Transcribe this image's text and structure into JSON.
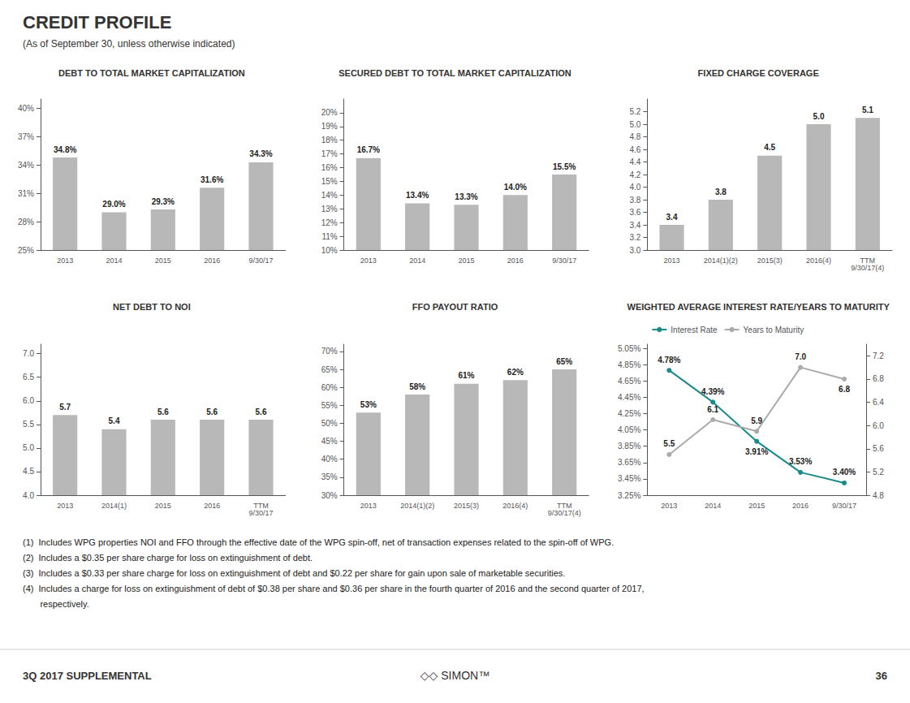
{
  "title": "CREDIT PROFILE",
  "subtitle": "(As of September 30, unless otherwise indicated)",
  "footnotes": [
    "(1)  Includes WPG properties NOI and FFO through the effective date of the WPG spin-off, net of transaction expenses related to the spin-off of WPG.",
    "(2)  Includes a $0.35 per share charge for loss on extinguishment of debt.",
    "(3)  Includes a $0.33 per share charge for loss on extinguishment of debt and $0.22 per share for gain upon sale of marketable securities.",
    "(4)  Includes a charge for loss on extinguishment of debt of $0.38 per share and $0.36 per share in the fourth quarter of 2016 and the second quarter of 2017,",
    "       respectively."
  ],
  "annotations": [
    "3Q 2017 SUPPLEMENTAL",
    "◇◇ SIMON™",
    "36"
  ],
  "chart_data": [
    {
      "type": "bar",
      "title": "DEBT TO TOTAL MARKET CAPITALIZATION",
      "categories": [
        "2013",
        "2014",
        "2015",
        "2016",
        "9/30/17"
      ],
      "values": [
        34.8,
        29.0,
        29.3,
        31.6,
        34.3
      ],
      "value_labels": [
        "34.8%",
        "29.0%",
        "29.3%",
        "31.6%",
        "34.3%"
      ],
      "color": "#b8b8b8",
      "ylim": [
        25,
        41
      ],
      "yticks": [
        {
          "value": 25,
          "label": "25%"
        },
        {
          "value": 28,
          "label": "28%"
        },
        {
          "value": 31,
          "label": "31%"
        },
        {
          "value": 34,
          "label": "34%"
        },
        {
          "value": 37,
          "label": "37%"
        },
        {
          "value": 40,
          "label": "40%"
        }
      ],
      "grid": false,
      "data_labels": true
    },
    {
      "type": "bar",
      "title": "SECURED DEBT TO TOTAL MARKET CAPITALIZATION",
      "categories": [
        "2013",
        "2014",
        "2015",
        "2016",
        "9/30/17"
      ],
      "values": [
        16.7,
        13.4,
        13.3,
        14.0,
        15.5
      ],
      "value_labels": [
        "16.7%",
        "13.4%",
        "13.3%",
        "14.0%",
        "15.5%"
      ],
      "color": "#b8b8b8",
      "ylim": [
        10,
        21
      ],
      "yticks": [
        {
          "value": 10,
          "label": "10%"
        },
        {
          "value": 11,
          "label": "11%"
        },
        {
          "value": 12,
          "label": "12%"
        },
        {
          "value": 13,
          "label": "13%"
        },
        {
          "value": 14,
          "label": "14%"
        },
        {
          "value": 15,
          "label": "15%"
        },
        {
          "value": 16,
          "label": "16%"
        },
        {
          "value": 17,
          "label": "17%"
        },
        {
          "value": 18,
          "label": "18%"
        },
        {
          "value": 19,
          "label": "19%"
        },
        {
          "value": 20,
          "label": "20%"
        }
      ],
      "grid": false,
      "data_labels": true
    },
    {
      "type": "bar",
      "title": "FIXED CHARGE COVERAGE",
      "categories": [
        "2013",
        "2014(1)(2)",
        "2015(3)",
        "2016(4)",
        "TTM\n9/30/17(4)"
      ],
      "values": [
        3.4,
        3.8,
        4.5,
        5.0,
        5.1
      ],
      "value_labels": [
        "3.4",
        "3.8",
        "4.5",
        "5.0",
        "5.1"
      ],
      "color": "#b8b8b8",
      "ylim": [
        3.0,
        5.4
      ],
      "yticks": [
        {
          "value": 3.0,
          "label": "3.0"
        },
        3.2,
        3.4,
        3.6,
        3.8,
        {
          "value": 4.0,
          "label": "4.0"
        },
        4.2,
        4.4,
        4.6,
        4.8,
        {
          "value": 5.0,
          "label": "5.0"
        },
        5.2
      ],
      "grid": false,
      "data_labels": true
    },
    {
      "type": "bar",
      "title": "NET DEBT TO NOI",
      "categories": [
        "2013",
        "2014(1)",
        "2015",
        "2016",
        "TTM\n9/30/17"
      ],
      "values": [
        5.7,
        5.4,
        5.6,
        5.6,
        5.6
      ],
      "value_labels": [
        "5.7",
        "5.4",
        "5.6",
        "5.6",
        "5.6"
      ],
      "color": "#b8b8b8",
      "ylim": [
        4.0,
        7.2
      ],
      "yticks": [
        {
          "value": 4.0,
          "label": "4.0"
        },
        4.5,
        {
          "value": 5.0,
          "label": "5.0"
        },
        5.5,
        {
          "value": 6.0,
          "label": "6.0"
        },
        6.5,
        {
          "value": 7.0,
          "label": "7.0"
        }
      ],
      "grid": false,
      "data_labels": true
    },
    {
      "type": "bar",
      "title": "FFO PAYOUT RATIO",
      "categories": [
        "2013",
        "2014(1)(2)",
        "2015(3)",
        "2016(4)",
        "TTM\n9/30/17(4)"
      ],
      "values": [
        53,
        58,
        61,
        62,
        65
      ],
      "value_labels": [
        "53%",
        "58%",
        "61%",
        "62%",
        "65%"
      ],
      "color": "#b8b8b8",
      "ylim": [
        30,
        72
      ],
      "yticks": [
        {
          "value": 30,
          "label": "30%"
        },
        {
          "value": 35,
          "label": "35%"
        },
        {
          "value": 40,
          "label": "40%"
        },
        {
          "value": 45,
          "label": "45%"
        },
        {
          "value": 50,
          "label": "50%"
        },
        {
          "value": 55,
          "label": "55%"
        },
        {
          "value": 60,
          "label": "60%"
        },
        {
          "value": 65,
          "label": "65%"
        },
        {
          "value": 70,
          "label": "70%"
        }
      ],
      "grid": false,
      "data_labels": true
    },
    {
      "type": "line",
      "title": "WEIGHTED AVERAGE INTEREST RATE/YEARS TO MATURITY",
      "categories": [
        "2013",
        "2014",
        "2015",
        "2016",
        "9/30/17"
      ],
      "series": [
        {
          "name": "Interest Rate",
          "color": "#1a8a8a",
          "marker": "circle",
          "values": [
            4.78,
            4.39,
            3.91,
            3.53,
            3.4
          ],
          "value_labels": [
            "4.78%",
            "4.39%",
            "3.91%",
            "3.53%",
            "3.40%"
          ]
        },
        {
          "name": "Years to Maturity",
          "color": "#aaaaaa",
          "marker": "circle",
          "axis": "y2",
          "values": [
            5.5,
            6.1,
            5.9,
            7.0,
            6.8
          ],
          "value_labels": [
            "5.5",
            "6.1",
            "5.9",
            "7.0",
            "6.8"
          ]
        }
      ],
      "ylim": [
        3.25,
        5.1
      ],
      "yticks": [
        {
          "value": 3.25,
          "label": "3.25%"
        },
        {
          "value": 3.45,
          "label": "3.45%"
        },
        {
          "value": 3.65,
          "label": "3.65%"
        },
        {
          "value": 3.85,
          "label": "3.85%"
        },
        {
          "value": 4.05,
          "label": "4.05%"
        },
        {
          "value": 4.25,
          "label": "4.25%"
        },
        {
          "value": 4.45,
          "label": "4.45%"
        },
        {
          "value": 4.65,
          "label": "4.65%"
        },
        {
          "value": 4.85,
          "label": "4.85%"
        },
        {
          "value": 5.05,
          "label": "5.05%"
        }
      ],
      "y2lim": [
        4.8,
        7.4
      ],
      "y2ticks": [
        4.8,
        5.2,
        5.6,
        {
          "value": 6.0,
          "label": "6.0"
        },
        6.4,
        6.8,
        7.2
      ],
      "legend": "top",
      "grid": false,
      "data_labels": true
    }
  ]
}
